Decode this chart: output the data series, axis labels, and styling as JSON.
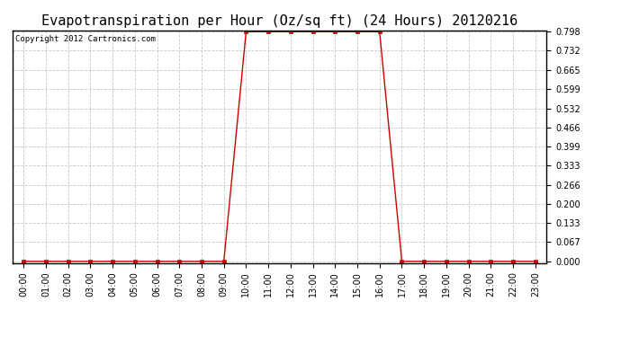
{
  "title": "Evapotranspiration per Hour (Oz/sq ft) (24 Hours) 20120216",
  "copyright_text": "Copyright 2012 Cartronics.com",
  "x_labels": [
    "00:00",
    "01:00",
    "02:00",
    "03:00",
    "04:00",
    "05:00",
    "06:00",
    "07:00",
    "08:00",
    "09:00",
    "10:00",
    "11:00",
    "12:00",
    "13:00",
    "14:00",
    "15:00",
    "16:00",
    "17:00",
    "18:00",
    "19:00",
    "20:00",
    "21:00",
    "22:00",
    "23:00"
  ],
  "hours": [
    0,
    1,
    2,
    3,
    4,
    5,
    6,
    7,
    8,
    9,
    10,
    11,
    12,
    13,
    14,
    15,
    16,
    17,
    18,
    19,
    20,
    21,
    22,
    23
  ],
  "values": [
    0.0,
    0.0,
    0.0,
    0.0,
    0.0,
    0.0,
    0.0,
    0.0,
    0.0,
    0.0,
    0.798,
    0.798,
    0.798,
    0.798,
    0.798,
    0.798,
    0.798,
    0.0,
    0.0,
    0.0,
    0.0,
    0.0,
    0.0,
    0.0
  ],
  "y_ticks": [
    0.0,
    0.067,
    0.133,
    0.2,
    0.266,
    0.333,
    0.399,
    0.466,
    0.532,
    0.599,
    0.665,
    0.732,
    0.798
  ],
  "y_max": 0.798,
  "y_min": 0.0,
  "line_color": "#cc0000",
  "marker": "s",
  "marker_size": 2.5,
  "bg_color": "#ffffff",
  "plot_bg_color": "#ffffff",
  "grid_color": "#c8c8c8",
  "title_fontsize": 11,
  "tick_fontsize": 7,
  "copyright_fontsize": 6.5,
  "fig_width": 6.9,
  "fig_height": 3.75,
  "dpi": 100
}
